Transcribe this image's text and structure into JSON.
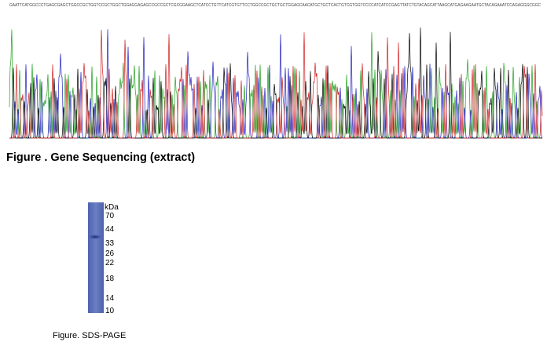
{
  "sequence_figure": {
    "sequence": "GAATTCATGGCCCTGAGCGAGCTGGCCGCTGGTCCGCTGGCTGGAGGAGAGCCGCCGCTCGCGGAAGCTCATCCTGTTCATCGTGTTCCTGGCCGCTGCTGCTGGAGCAACATGCTGCTCACTGTCGTGGTCCCCATCATCCGAGTTATCTGTACAGCATTAAGCATGAGAAGAATGCTACAGAAATCCAGAGGGCGGC",
    "caption": "Figure . Gene Sequencing (extract)"
  },
  "gel_figure": {
    "unit": "kDa",
    "markers": [
      "70",
      "44",
      "33",
      "26",
      "22",
      "18",
      "14",
      "10"
    ],
    "caption": "Figure. SDS-PAGE"
  }
}
